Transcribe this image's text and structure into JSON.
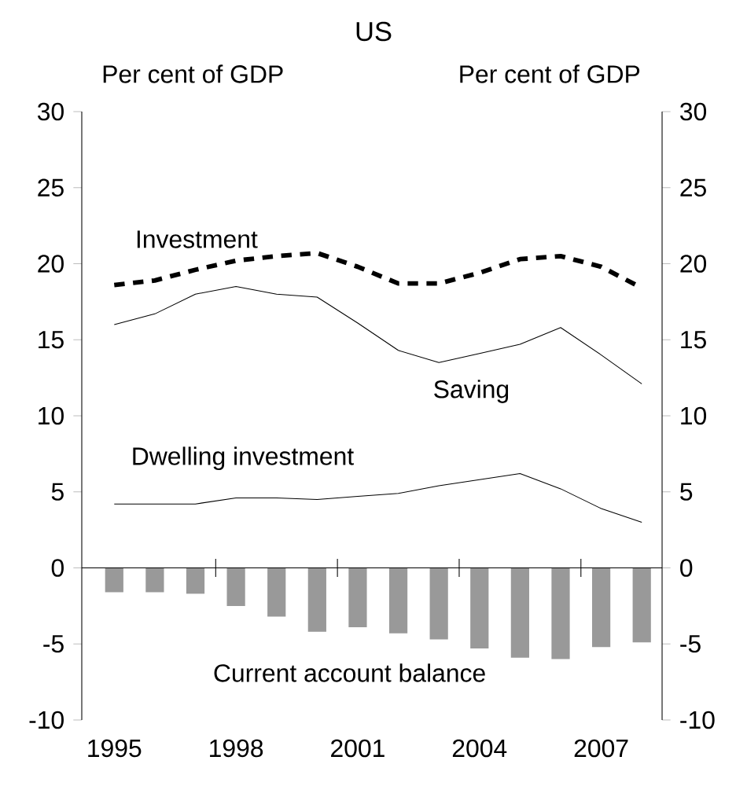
{
  "chart_data": {
    "type": "line",
    "title": "US",
    "ylabel": "Per cent of GDP",
    "y2label": "Per cent of GDP",
    "x": [
      1995,
      1996,
      1997,
      1998,
      1999,
      2000,
      2001,
      2002,
      2003,
      2004,
      2005,
      2006,
      2007,
      2008
    ],
    "xlim": [
      1994.2,
      2008.5
    ],
    "xticks": [
      {
        "value": 1995,
        "label": "1995"
      },
      {
        "value": 1997.5,
        "label": null
      },
      {
        "value": 1998,
        "label": "1998"
      },
      {
        "value": 2000.5,
        "label": null
      },
      {
        "value": 2001,
        "label": "2001"
      },
      {
        "value": 2003.5,
        "label": null
      },
      {
        "value": 2004,
        "label": "2004"
      },
      {
        "value": 2006.5,
        "label": null
      },
      {
        "value": 2007,
        "label": "2007"
      }
    ],
    "ylim": [
      -10,
      30
    ],
    "yticks": [
      -10,
      -5,
      0,
      5,
      10,
      15,
      20,
      25,
      30
    ],
    "y2lim": [
      -10,
      30
    ],
    "y2ticks": [
      -10,
      -5,
      0,
      5,
      10,
      15,
      20,
      25,
      30
    ],
    "series": [
      {
        "name": "Investment",
        "line_style": "dashed",
        "color": "#000000",
        "values": [
          18.6,
          18.9,
          19.6,
          20.2,
          20.5,
          20.7,
          19.8,
          18.7,
          18.7,
          19.4,
          20.3,
          20.5,
          19.8,
          18.4
        ]
      },
      {
        "name": "Saving",
        "line_style": "solid",
        "color": "#000000",
        "values": [
          16.0,
          16.7,
          18.0,
          18.5,
          18.0,
          17.8,
          16.1,
          14.3,
          13.5,
          14.1,
          14.7,
          15.8,
          14.0,
          12.1
        ]
      },
      {
        "name": "Dwelling investment",
        "line_style": "solid",
        "color": "#000000",
        "values": [
          4.2,
          4.2,
          4.2,
          4.6,
          4.6,
          4.5,
          4.7,
          4.9,
          5.4,
          5.8,
          6.2,
          5.2,
          3.9,
          3.0
        ]
      },
      {
        "name": "Current account balance",
        "type": "bar",
        "color": "#999999",
        "values": [
          -1.6,
          -1.6,
          -1.7,
          -2.5,
          -3.2,
          -4.2,
          -3.9,
          -4.3,
          -4.7,
          -5.3,
          -5.9,
          -6.0,
          -5.2,
          -4.9
        ]
      }
    ]
  }
}
